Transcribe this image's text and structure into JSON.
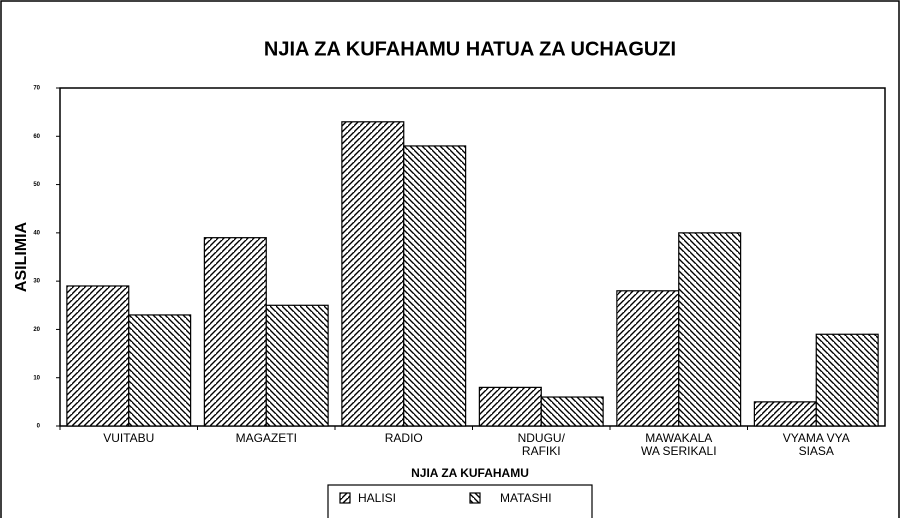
{
  "chart_data": {
    "type": "bar",
    "title": "NJIA ZA KUFAHAMU HATUA ZA UCHAGUZI",
    "y_label": "ASILIMIA",
    "x_label": "NJIA ZA KUFAHAMU",
    "categories": [
      "VUITABU",
      "MAGAZETI",
      "RADIO",
      "NDUGU/\nRAFIKI",
      "MAWAKALA\nWA SERIKALI",
      "VYAMA VYA\nSIASA"
    ],
    "series": [
      {
        "name": "HALISI",
        "color": "#000000",
        "hatch": "forward",
        "values": [
          29,
          39,
          63,
          8,
          28,
          5
        ]
      },
      {
        "name": "MATASHI",
        "color": "#000000",
        "hatch": "back",
        "values": [
          23,
          25,
          58,
          6,
          40,
          19
        ]
      }
    ],
    "ylim": [
      0,
      70
    ],
    "yticks": [
      0,
      10,
      20,
      30,
      40,
      50,
      60,
      70
    ],
    "grid": false,
    "legend": "bottom"
  }
}
